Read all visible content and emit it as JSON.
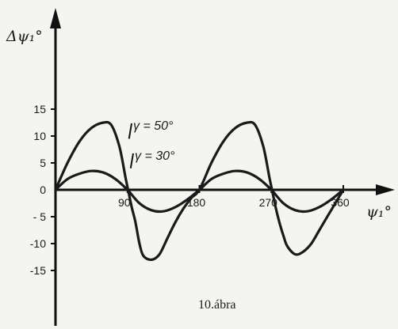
{
  "chart_data": {
    "type": "line",
    "ylabel": "Δψ₁°",
    "xlabel": "ψ₁°",
    "caption": "10.ábra",
    "xlim": [
      0,
      400
    ],
    "ylim": [
      -16,
      21
    ],
    "x_ticks": [
      {
        "value": 90,
        "label": "90"
      },
      {
        "value": 180,
        "label": "180"
      },
      {
        "value": 270,
        "label": "270"
      },
      {
        "value": 360,
        "label": "360"
      }
    ],
    "y_ticks": [
      {
        "value": 15,
        "label": "15"
      },
      {
        "value": 10,
        "label": "10"
      },
      {
        "value": 5,
        "label": "5"
      },
      {
        "value": 0,
        "label": "0"
      },
      {
        "value": -5,
        "label": "- 5"
      },
      {
        "value": -10,
        "label": "-10"
      },
      {
        "value": -15,
        "label": "-15"
      }
    ],
    "series": [
      {
        "name": "γ = 50°",
        "color": "#1a1a1a",
        "x": [
          0,
          15,
          30,
          45,
          60,
          70,
          80,
          88,
          95,
          100,
          105,
          110,
          120,
          130,
          140,
          150,
          160,
          170,
          180,
          195,
          210,
          225,
          240,
          250,
          260,
          268,
          275,
          280,
          285,
          290,
          300,
          310,
          320,
          330,
          340,
          350,
          360
        ],
        "y": [
          0,
          5,
          9,
          11.5,
          12.5,
          12,
          8,
          2,
          -3,
          -6,
          -10,
          -12.3,
          -13,
          -12,
          -9,
          -6,
          -3.5,
          -1.5,
          0,
          5,
          9,
          11.5,
          12.5,
          12,
          8,
          2,
          -3,
          -6,
          -8.5,
          -10.5,
          -12,
          -11.5,
          -10,
          -7.5,
          -5,
          -2.5,
          0
        ]
      },
      {
        "name": "γ = 30°",
        "color": "#1a1a1a",
        "x": [
          0,
          15,
          30,
          45,
          60,
          75,
          90,
          105,
          120,
          135,
          150,
          165,
          180,
          195,
          210,
          225,
          240,
          255,
          270,
          285,
          300,
          315,
          330,
          345,
          360
        ],
        "y": [
          0,
          2,
          3,
          3.5,
          3.2,
          2,
          0,
          -2.5,
          -3.8,
          -4,
          -3.2,
          -1.8,
          0,
          2,
          3,
          3.5,
          3.2,
          2,
          0,
          -2.5,
          -3.8,
          -4,
          -3.2,
          -1.8,
          0
        ]
      }
    ],
    "series_labels": [
      {
        "series": 0,
        "text": "γ = 50°",
        "anchor_x": 90,
        "anchor_y": 9.5
      },
      {
        "series": 1,
        "text": "γ = 30°",
        "anchor_x": 92,
        "anchor_y": 4
      }
    ]
  }
}
